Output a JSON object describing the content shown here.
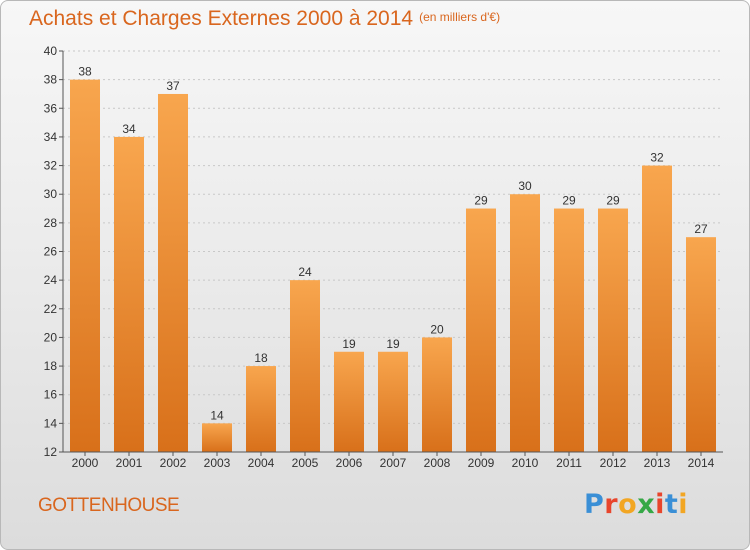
{
  "title": "Achats et Charges Externes 2000 à 2014",
  "subtitle": "(en milliers d'€)",
  "commune": "GOTTENHOUSE",
  "brand": {
    "letters": [
      "P",
      "r",
      "o",
      "x",
      "i",
      "t",
      "i"
    ],
    "colors": [
      "#3a8fd6",
      "#e8452c",
      "#f2a623",
      "#35a846",
      "#e8452c",
      "#3a8fd6",
      "#f2a623"
    ]
  },
  "colors": {
    "bar_top": "#f8a64e",
    "bar_bottom": "#d8701a",
    "accent": "#d9661e"
  },
  "chart_data": {
    "type": "bar",
    "categories": [
      "2000",
      "2001",
      "2002",
      "2003",
      "2004",
      "2005",
      "2006",
      "2007",
      "2008",
      "2009",
      "2010",
      "2011",
      "2012",
      "2013",
      "2014"
    ],
    "values": [
      38,
      34,
      37,
      14,
      18,
      24,
      19,
      19,
      20,
      29,
      30,
      29,
      29,
      32,
      27
    ],
    "ylim": [
      12,
      40
    ],
    "yticks": [
      12,
      14,
      16,
      18,
      20,
      22,
      24,
      26,
      28,
      30,
      32,
      34,
      36,
      38,
      40
    ],
    "grid": true,
    "xlabel": "",
    "ylabel": ""
  }
}
